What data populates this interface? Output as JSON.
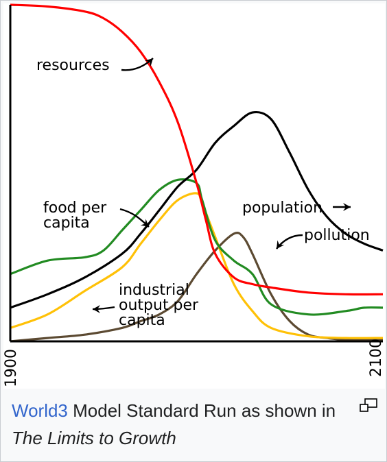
{
  "chart_data": {
    "type": "line",
    "title": "",
    "xlabel": "",
    "ylabel": "",
    "xlim": [
      1900,
      2100
    ],
    "ylim": [
      0,
      1
    ],
    "x_ticks": [
      "1900",
      "2100"
    ],
    "grid": false,
    "series": [
      {
        "name": "resources",
        "color": "#ff0000",
        "x": [
          1900,
          1920,
          1940,
          1950,
          1960,
          1970,
          1980,
          1990,
          2000,
          2005,
          2010,
          2020,
          2030,
          2040,
          2060,
          2080,
          2100
        ],
        "y": [
          1.0,
          0.995,
          0.98,
          0.96,
          0.92,
          0.86,
          0.77,
          0.65,
          0.47,
          0.36,
          0.26,
          0.19,
          0.17,
          0.16,
          0.145,
          0.14,
          0.14
        ]
      },
      {
        "name": "population",
        "color": "#000000",
        "x": [
          1900,
          1920,
          1940,
          1960,
          1970,
          1980,
          1990,
          2000,
          2010,
          2020,
          2030,
          2040,
          2050,
          2060,
          2070,
          2080,
          2090,
          2100
        ],
        "y": [
          0.1,
          0.14,
          0.19,
          0.26,
          0.32,
          0.39,
          0.46,
          0.51,
          0.59,
          0.64,
          0.68,
          0.66,
          0.56,
          0.45,
          0.37,
          0.32,
          0.29,
          0.27
        ]
      },
      {
        "name": "food per capita",
        "color": "#228b22",
        "x": [
          1900,
          1920,
          1940,
          1950,
          1960,
          1970,
          1980,
          1990,
          2000,
          2003,
          2010,
          2020,
          2030,
          2040,
          2060,
          2080,
          2090,
          2100
        ],
        "y": [
          0.2,
          0.24,
          0.25,
          0.27,
          0.33,
          0.39,
          0.45,
          0.48,
          0.47,
          0.42,
          0.3,
          0.24,
          0.2,
          0.11,
          0.08,
          0.09,
          0.1,
          0.1
        ]
      },
      {
        "name": "industrial output per capita",
        "color": "#ffc107",
        "x": [
          1900,
          1920,
          1940,
          1960,
          1970,
          1980,
          1990,
          2000,
          2003,
          2010,
          2020,
          2030,
          2040,
          2060,
          2080,
          2100
        ],
        "y": [
          0.04,
          0.08,
          0.15,
          0.22,
          0.29,
          0.36,
          0.42,
          0.44,
          0.41,
          0.31,
          0.17,
          0.09,
          0.04,
          0.015,
          0.01,
          0.01
        ]
      },
      {
        "name": "pollution",
        "color": "#5c4a32",
        "x": [
          1900,
          1920,
          1940,
          1960,
          1970,
          1980,
          1990,
          2000,
          2010,
          2020,
          2025,
          2030,
          2040,
          2050,
          2060,
          2070,
          2080,
          2100
        ],
        "y": [
          0.0,
          0.01,
          0.02,
          0.04,
          0.06,
          0.08,
          0.12,
          0.2,
          0.27,
          0.32,
          0.31,
          0.26,
          0.14,
          0.06,
          0.02,
          0.01,
          0.005,
          0.005
        ]
      }
    ],
    "annotations": [
      {
        "series": "resources",
        "text": [
          "resources"
        ]
      },
      {
        "series": "population",
        "text": [
          "population"
        ]
      },
      {
        "series": "food per capita",
        "text": [
          "food per",
          "capita"
        ]
      },
      {
        "series": "industrial output per capita",
        "text": [
          "industrial",
          "output per",
          "capita"
        ]
      },
      {
        "series": "pollution",
        "text": [
          "pollution"
        ]
      }
    ]
  },
  "caption": {
    "link_text": "World3",
    "text_before_title": " Model Standard Run as shown in ",
    "book_title": "The Limits to Growth"
  },
  "magnify_icon": "magnify-clip-icon"
}
